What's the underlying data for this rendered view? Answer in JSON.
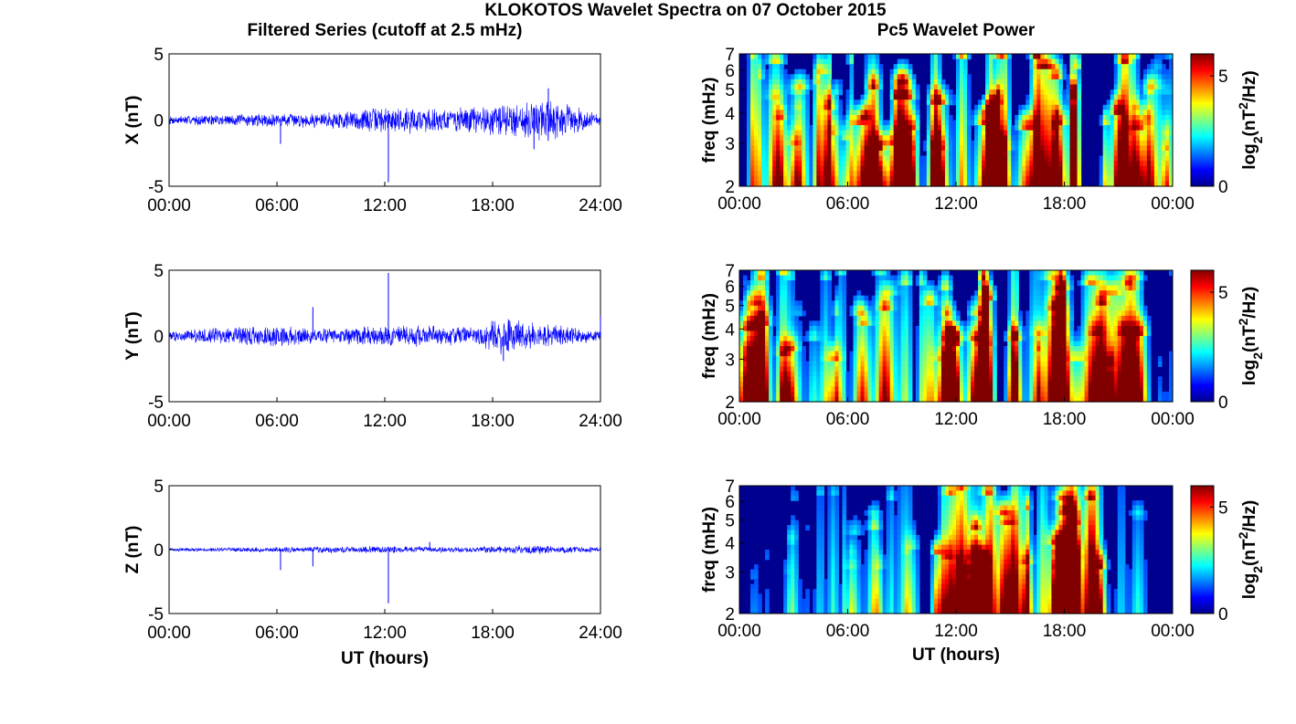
{
  "figure_title": "KLOKOTOS Wavelet Spectra on 07 October 2015",
  "left_title": "Filtered Series (cutoff at 2.5 mHz)",
  "right_title": "Pc5 Wavelet Power",
  "xlabel": "UT (hours)",
  "colors": {
    "trace": "#0000ff",
    "background": "#00008f"
  },
  "chart_data": [
    {
      "type": "line",
      "component": "X",
      "ylabel": "X (nT)",
      "ylim": [
        -5,
        5
      ],
      "yticks": [
        "5",
        "0",
        "-5"
      ],
      "xlim_hours": [
        0,
        24
      ],
      "xticks": [
        "00:00",
        "06:00",
        "12:00",
        "18:00",
        "24:00"
      ],
      "activity_profile_hours": [
        [
          0,
          0.35
        ],
        [
          4,
          0.5
        ],
        [
          8,
          0.6
        ],
        [
          10.5,
          0.9
        ],
        [
          12,
          1.1
        ],
        [
          16,
          1.0
        ],
        [
          19,
          1.4
        ],
        [
          21,
          1.8
        ],
        [
          24,
          0.5
        ]
      ],
      "spikes": [
        {
          "t": 12.2,
          "v": -4.7
        },
        {
          "t": 21.1,
          "v": 2.4
        },
        {
          "t": 20.3,
          "v": -2.2
        },
        {
          "t": 6.2,
          "v": -1.8
        }
      ]
    },
    {
      "type": "line",
      "component": "Y",
      "ylabel": "Y (nT)",
      "ylim": [
        -5,
        5
      ],
      "yticks": [
        "5",
        "0",
        "-5"
      ],
      "xlim_hours": [
        0,
        24
      ],
      "xticks": [
        "00:00",
        "06:00",
        "12:00",
        "18:00",
        "24:00"
      ],
      "activity_profile_hours": [
        [
          0,
          0.4
        ],
        [
          4,
          0.8
        ],
        [
          6,
          0.9
        ],
        [
          9,
          0.6
        ],
        [
          11,
          0.8
        ],
        [
          13,
          0.9
        ],
        [
          17,
          0.7
        ],
        [
          18.5,
          1.6
        ],
        [
          20.5,
          1.1
        ],
        [
          24,
          0.5
        ]
      ],
      "spikes": [
        {
          "t": 12.2,
          "v": 4.8
        },
        {
          "t": 8.0,
          "v": 2.2
        },
        {
          "t": 18.6,
          "v": -1.9
        },
        {
          "t": 24.0,
          "v": 1.5
        }
      ]
    },
    {
      "type": "line",
      "component": "Z",
      "ylabel": "Z (nT)",
      "ylim": [
        -5,
        5
      ],
      "yticks": [
        "5",
        "0",
        "-5"
      ],
      "xlim_hours": [
        0,
        24
      ],
      "xticks": [
        "00:00",
        "06:00",
        "12:00",
        "18:00",
        "24:00"
      ],
      "activity_profile_hours": [
        [
          0,
          0.15
        ],
        [
          5,
          0.2
        ],
        [
          8,
          0.25
        ],
        [
          12,
          0.3
        ],
        [
          16,
          0.25
        ],
        [
          20.5,
          0.4
        ],
        [
          24,
          0.2
        ]
      ],
      "spikes": [
        {
          "t": 12.2,
          "v": -4.2
        },
        {
          "t": 6.2,
          "v": -1.6
        },
        {
          "t": 8.0,
          "v": -1.3
        },
        {
          "t": 14.5,
          "v": 0.6
        }
      ]
    },
    {
      "type": "heatmap",
      "component": "X",
      "ylabel": "freq (mHz)",
      "ylim_mhz": [
        2,
        7
      ],
      "yscale": "log",
      "yticks": [
        "7",
        "6",
        "5",
        "4",
        "3",
        "2"
      ],
      "xticks": [
        "00:00",
        "06:00",
        "12:00",
        "18:00",
        "00:00"
      ],
      "colorbar_label": "log2(nT^2/Hz)",
      "clim": [
        0,
        6
      ],
      "colorbar_ticks": [
        "5",
        "0"
      ],
      "activity_profile_hours": [
        [
          0,
          0.35
        ],
        [
          1.5,
          0.7
        ],
        [
          3,
          0.45
        ],
        [
          5,
          0.6
        ],
        [
          7,
          0.75
        ],
        [
          9,
          0.85
        ],
        [
          10.5,
          1.0
        ],
        [
          12,
          1.1
        ],
        [
          15,
          1.05
        ],
        [
          18,
          1.2
        ],
        [
          20.5,
          1.25
        ],
        [
          22,
          0.45
        ],
        [
          24,
          0.3
        ]
      ]
    },
    {
      "type": "heatmap",
      "component": "Y",
      "ylabel": "freq (mHz)",
      "ylim_mhz": [
        2,
        7
      ],
      "yscale": "log",
      "yticks": [
        "7",
        "6",
        "5",
        "4",
        "3",
        "2"
      ],
      "xticks": [
        "00:00",
        "06:00",
        "12:00",
        "18:00",
        "00:00"
      ],
      "colorbar_label": "log2(nT^2/Hz)",
      "clim": [
        0,
        6
      ],
      "colorbar_ticks": [
        "5",
        "0"
      ],
      "activity_profile_hours": [
        [
          0,
          0.2
        ],
        [
          1.5,
          0.8
        ],
        [
          3,
          0.45
        ],
        [
          5,
          0.6
        ],
        [
          7,
          0.7
        ],
        [
          9,
          0.6
        ],
        [
          11,
          0.85
        ],
        [
          12.5,
          1.0
        ],
        [
          15.5,
          0.95
        ],
        [
          17,
          0.7
        ],
        [
          20,
          1.0
        ],
        [
          21.5,
          0.5
        ],
        [
          24,
          0.2
        ]
      ]
    },
    {
      "type": "heatmap",
      "component": "Z",
      "ylabel": "freq (mHz)",
      "ylim_mhz": [
        2,
        7
      ],
      "yscale": "log",
      "yticks": [
        "7",
        "6",
        "5",
        "4",
        "3",
        "2"
      ],
      "xticks": [
        "00:00",
        "06:00",
        "12:00",
        "18:00",
        "00:00"
      ],
      "colorbar_label": "log2(nT^2/Hz)",
      "clim": [
        0,
        6
      ],
      "colorbar_ticks": [
        "5",
        "0"
      ],
      "activity_profile_hours": [
        [
          0,
          0.0
        ],
        [
          2,
          0.15
        ],
        [
          5,
          0.3
        ],
        [
          8,
          0.45
        ],
        [
          9.5,
          0.35
        ],
        [
          11,
          0.5
        ],
        [
          12.5,
          0.85
        ],
        [
          14,
          0.65
        ],
        [
          16,
          0.55
        ],
        [
          18,
          0.7
        ],
        [
          20,
          0.85
        ],
        [
          21.5,
          0.25
        ],
        [
          24,
          0.0
        ]
      ]
    }
  ]
}
